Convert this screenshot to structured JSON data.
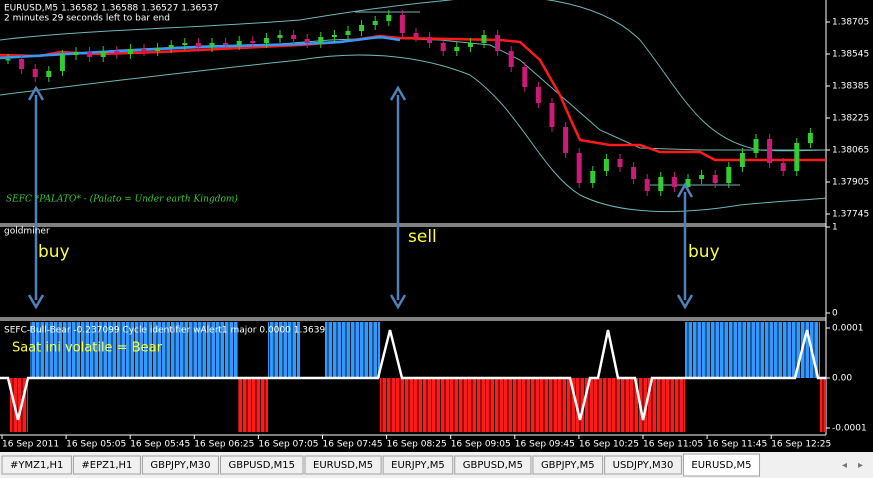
{
  "window": {
    "main_chart": {
      "header": "EURUSD,M5  1.36582 1.36588 1.36527 1.36537",
      "countdown": "2 minutes 29 seconds left to bar end",
      "indicator_label": "SEFC *PALATO* - (Palato = Under earth Kingdom)",
      "price_ticks": [
        1.38705,
        1.38545,
        1.38385,
        1.38225,
        1.38065,
        1.37905,
        1.37745
      ],
      "closes": [
        1.3852,
        1.3847,
        1.3843,
        1.3846,
        1.3854,
        1.38555,
        1.3853,
        1.3856,
        1.38545,
        1.3857,
        1.3856,
        1.38575,
        1.3859,
        1.386,
        1.3858,
        1.386,
        1.3859,
        1.3861,
        1.386,
        1.38625,
        1.3864,
        1.3862,
        1.386,
        1.3863,
        1.3864,
        1.3866,
        1.3869,
        1.3871,
        1.3874,
        1.3865,
        1.3863,
        1.386,
        1.3856,
        1.3858,
        1.386,
        1.3864,
        1.3856,
        1.3848,
        1.3838,
        1.383,
        1.3818,
        1.3805,
        1.379,
        1.3796,
        1.3802,
        1.3798,
        1.3792,
        1.3786,
        1.3793,
        1.3788,
        1.3792,
        1.3794,
        1.379,
        1.3798,
        1.3805,
        1.3812,
        1.38,
        1.3796,
        1.381,
        1.3815
      ],
      "up_color": "#33cc33",
      "down_color": "#cc1a77"
    },
    "goldminer_panel": {
      "label": "goldminer",
      "ticks": [
        1,
        0
      ]
    },
    "annotations": [
      "buy",
      "sell",
      "buy"
    ],
    "bull_bear_panel": {
      "label": "SEFC-Bull-Bear -0.237099  Cycle identifier wAlert1 major 0.0000 1.3639",
      "status": "Saat ini volatile = Bear",
      "ticks": [
        0.0001,
        {
          "value": 0,
          "label": "0.00"
        },
        -0.0001
      ]
    },
    "time_labels": [
      "16 Sep 2011",
      "16 Sep 05:05",
      "16 Sep 05:45",
      "16 Sep 06:25",
      "16 Sep 07:05",
      "16 Sep 07:45",
      "16 Sep 08:25",
      "16 Sep 09:05",
      "16 Sep 09:45",
      "16 Sep 10:25",
      "16 Sep 11:05",
      "16 Sep 11:45",
      "16 Sep 12:25"
    ],
    "tabs": [
      "#YMZ1,H1",
      "#EPZ1,H1",
      "GBPJPY,M30",
      "GBPUSD,M15",
      "EURUSD,M5",
      "EURJPY,M5",
      "GBPUSD,M5",
      "GBPJPY,M5",
      "USDJPY,M30",
      "EURUSD,M5"
    ]
  }
}
